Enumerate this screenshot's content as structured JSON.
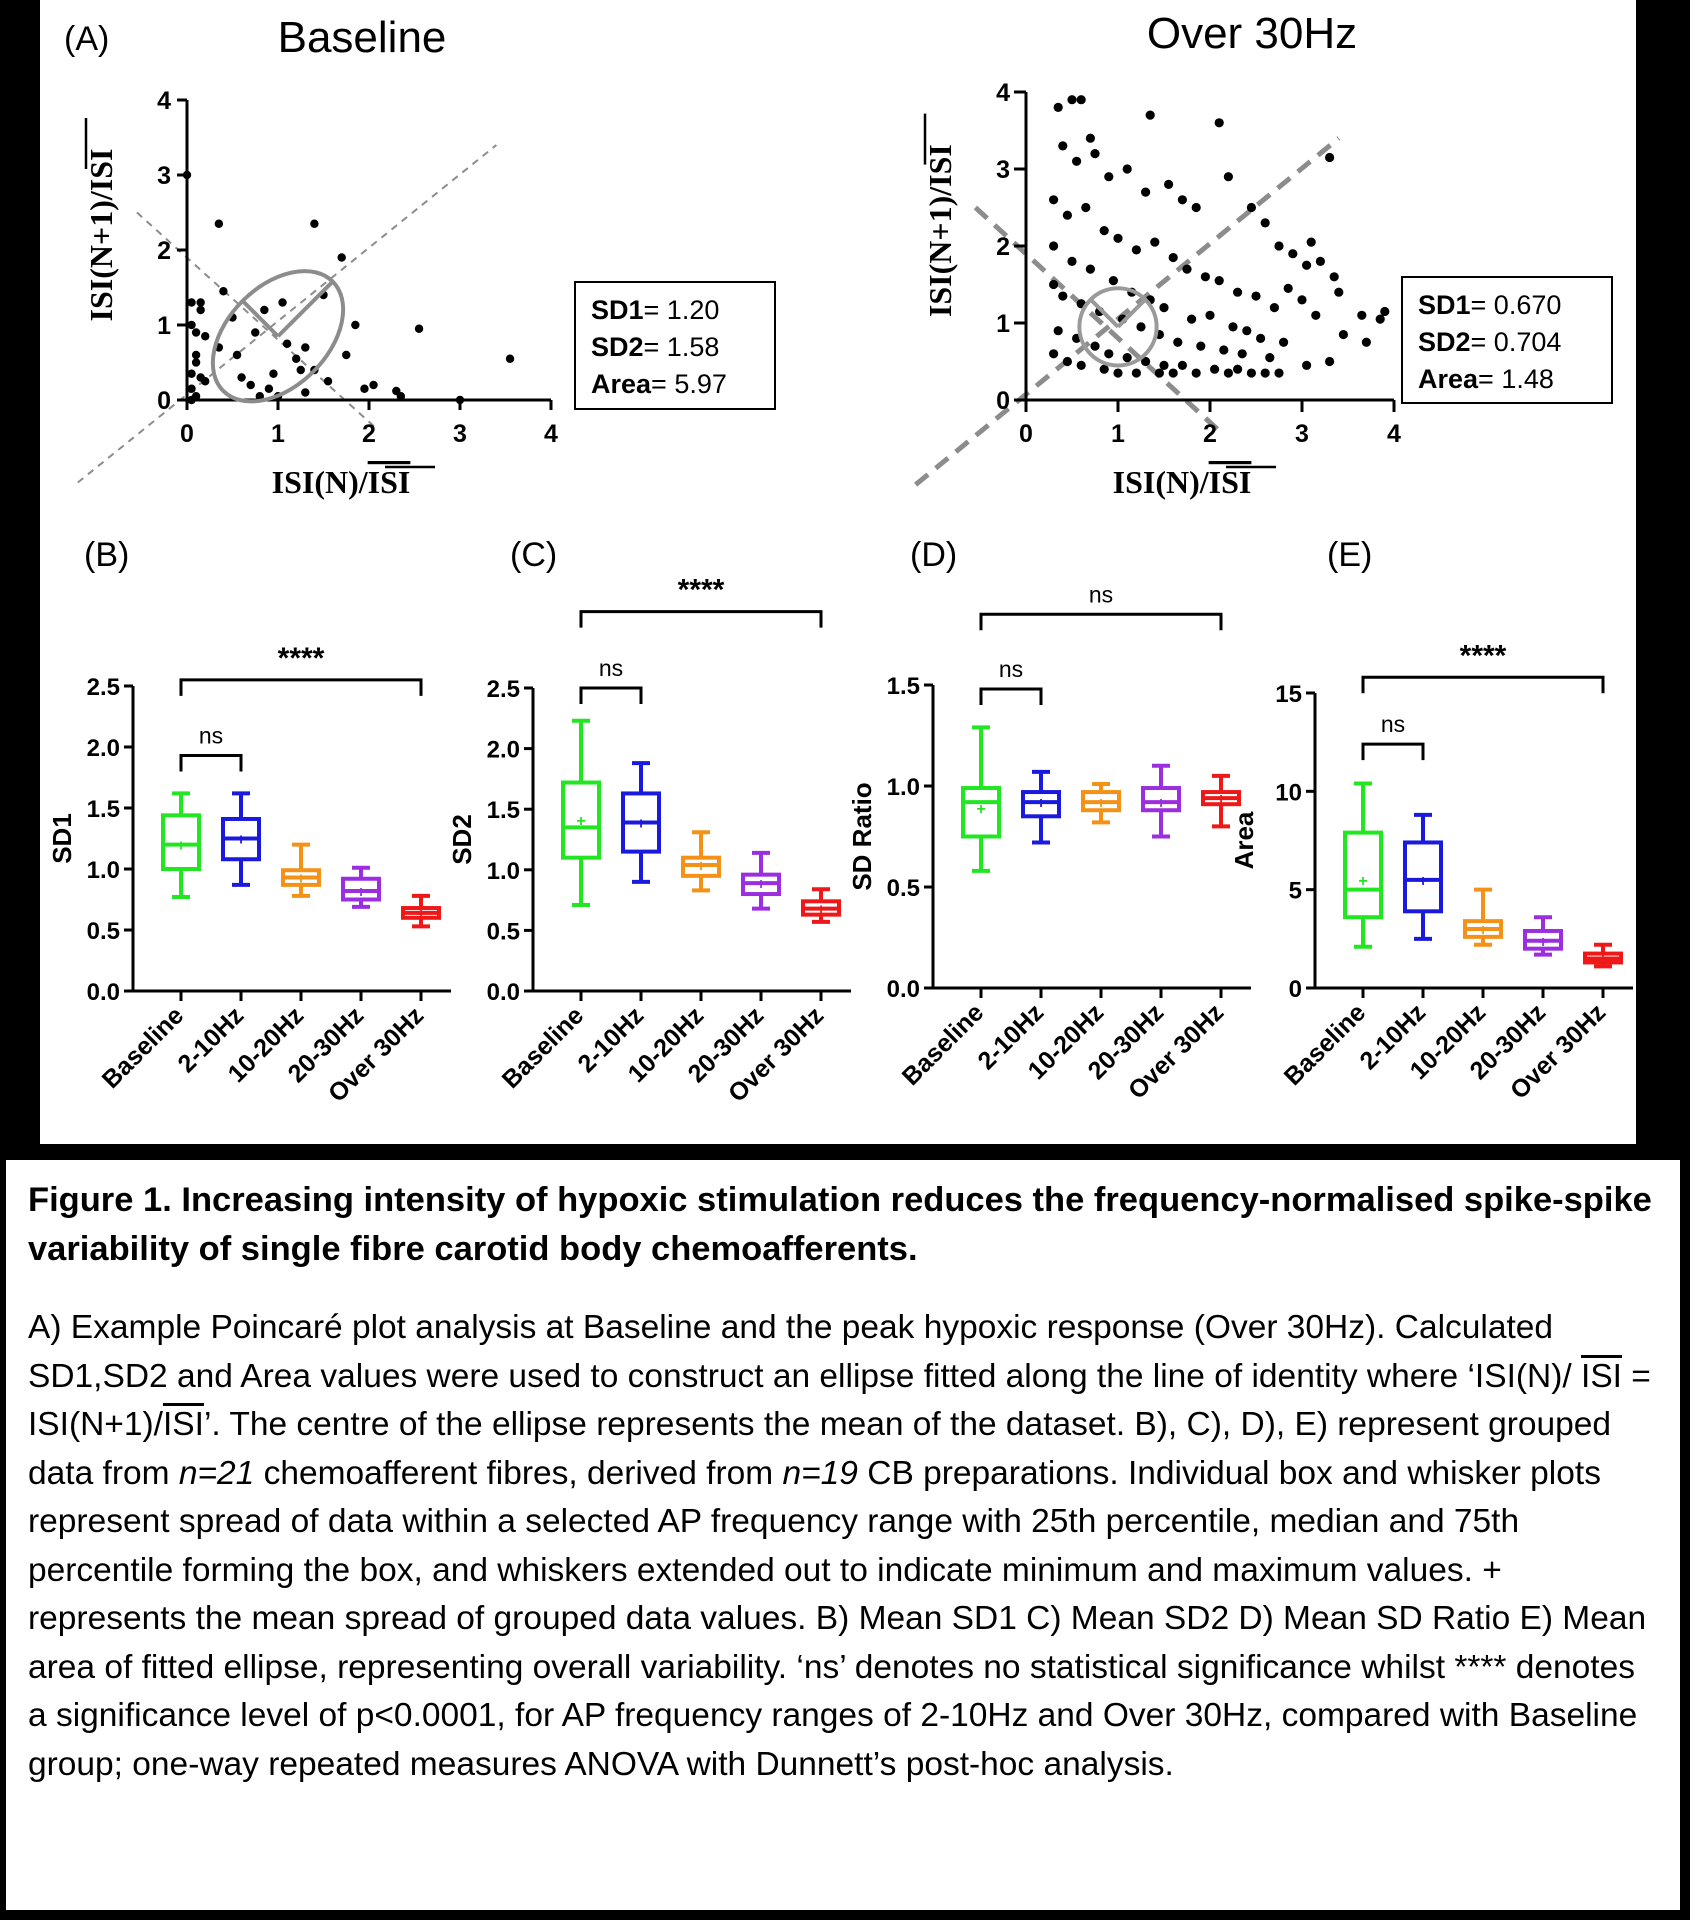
{
  "panel_a": {
    "label": "(A)",
    "isi_bar": "ISI",
    "axis_x_prefix": "ISI(N)/",
    "axis_y_prefix": "ISI(N+1)/",
    "plots": [
      {
        "title": "Baseline",
        "stats": [
          {
            "key": "SD1",
            "value": "= 1.20"
          },
          {
            "key": "SD2",
            "value": "= 1.58"
          },
          {
            "key": "Area",
            "value": "= 5.97"
          }
        ],
        "ellipse": {
          "cx": 1.0,
          "cy": 0.85,
          "sd1": 0.55,
          "sd2": 0.85
        }
      },
      {
        "title": "Over 30Hz",
        "stats": [
          {
            "key": "SD1",
            "value": "= 0.670"
          },
          {
            "key": "SD2",
            "value": "= 0.704"
          },
          {
            "key": "Area",
            "value": "= 1.48"
          }
        ],
        "ellipse": {
          "cx": 1.0,
          "cy": 0.95,
          "sd1": 0.42,
          "sd2": 0.42
        }
      }
    ]
  },
  "chart_data": [
    {
      "type": "scatter",
      "title": "Baseline",
      "xlabel": "ISI(N)/ISI",
      "ylabel": "ISI(N+1)/ISI",
      "xlim": [
        0,
        4
      ],
      "ylim": [
        0,
        4
      ],
      "x": [
        0.05,
        0.05,
        0.1,
        0.1,
        0.15,
        0.2,
        0.05,
        0.1,
        0.05,
        0.15,
        0.2,
        0.1,
        0.05,
        0.15,
        0.35,
        0.4,
        0.5,
        0.55,
        0.6,
        0.35,
        0.75,
        0.85,
        0.95,
        1.05,
        1.1,
        1.2,
        1.25,
        1.3,
        1.4,
        1.55,
        0.7,
        0.8,
        0.9,
        1.0,
        1.3,
        1.5,
        1.7,
        1.85,
        2.05,
        2.3,
        2.35,
        3.0,
        3.55,
        2.55,
        1.95,
        1.4,
        1.75,
        0.0
      ],
      "y": [
        1.3,
        1.0,
        0.9,
        0.6,
        0.3,
        0.25,
        0.15,
        0.05,
        0.0,
        1.2,
        0.85,
        0.5,
        0.35,
        1.3,
        2.35,
        1.45,
        1.1,
        0.6,
        0.3,
        0.7,
        0.9,
        1.2,
        0.35,
        1.3,
        0.75,
        0.55,
        0.4,
        0.7,
        0.4,
        0.25,
        0.2,
        0.05,
        0.15,
        0.05,
        0.1,
        1.4,
        1.9,
        1.0,
        0.2,
        0.12,
        0.05,
        0.0,
        0.55,
        0.95,
        0.15,
        2.35,
        0.6,
        3.0
      ]
    },
    {
      "type": "scatter",
      "title": "Over 30Hz",
      "xlabel": "ISI(N)/ISI",
      "ylabel": "ISI(N+1)/ISI",
      "xlim": [
        0,
        4
      ],
      "ylim": [
        0,
        4
      ],
      "x": [
        0.35,
        0.5,
        0.6,
        0.7,
        1.35,
        2.1,
        3.4,
        3.65,
        3.85,
        3.9,
        3.7,
        3.1,
        3.3,
        0.4,
        0.55,
        0.75,
        0.9,
        1.1,
        1.3,
        1.55,
        1.7,
        1.85,
        2.2,
        2.45,
        2.6,
        2.75,
        2.9,
        3.05,
        3.2,
        3.35,
        0.3,
        0.45,
        0.65,
        0.85,
        1.0,
        1.2,
        1.4,
        1.6,
        1.75,
        1.95,
        2.1,
        2.3,
        2.5,
        2.7,
        2.85,
        3.0,
        3.15,
        0.3,
        0.5,
        0.7,
        0.95,
        1.15,
        1.35,
        1.5,
        1.8,
        2.0,
        2.25,
        2.4,
        2.55,
        2.8,
        0.3,
        0.4,
        0.6,
        0.8,
        1.05,
        1.25,
        1.45,
        1.65,
        1.9,
        2.15,
        2.35,
        2.65,
        0.35,
        0.55,
        0.75,
        0.9,
        1.1,
        1.3,
        1.5,
        1.7,
        2.05,
        2.3,
        2.6,
        0.3,
        0.45,
        0.6,
        0.85,
        1.0,
        1.2,
        1.45,
        1.6,
        1.85,
        2.2,
        2.45,
        2.75,
        3.05,
        3.3,
        3.45
      ],
      "y": [
        3.8,
        3.9,
        3.9,
        3.4,
        3.7,
        3.6,
        1.4,
        1.1,
        1.05,
        1.15,
        0.75,
        2.05,
        3.15,
        3.3,
        3.1,
        3.2,
        2.9,
        3.0,
        2.7,
        2.8,
        2.6,
        2.5,
        2.9,
        2.5,
        2.3,
        2.0,
        1.9,
        1.75,
        1.8,
        1.6,
        2.6,
        2.4,
        2.5,
        2.2,
        2.1,
        1.95,
        2.05,
        1.85,
        1.7,
        1.6,
        1.55,
        1.4,
        1.35,
        1.2,
        1.45,
        1.3,
        1.1,
        2.0,
        1.8,
        1.7,
        1.55,
        1.4,
        1.3,
        1.2,
        1.05,
        1.1,
        0.95,
        0.9,
        0.8,
        0.75,
        1.5,
        1.35,
        1.25,
        1.15,
        1.05,
        0.95,
        0.85,
        0.75,
        0.7,
        0.65,
        0.6,
        0.55,
        0.9,
        0.8,
        0.7,
        0.6,
        0.55,
        0.5,
        0.45,
        0.45,
        0.4,
        0.4,
        0.35,
        0.6,
        0.5,
        0.45,
        0.4,
        0.35,
        0.35,
        0.35,
        0.35,
        0.35,
        0.35,
        0.35,
        0.35,
        0.45,
        0.5,
        0.85
      ]
    },
    {
      "type": "box",
      "panel": "(B)",
      "ylabel": "SD1",
      "ylim": [
        0,
        2.5
      ],
      "yticks": [
        "0.0",
        "0.5",
        "1.0",
        "1.5",
        "2.0",
        "2.5"
      ],
      "categories": [
        "Baseline",
        "2-10Hz",
        "10-20Hz",
        "20-30Hz",
        "Over 30Hz"
      ],
      "boxes": [
        {
          "min": 0.77,
          "q1": 1.0,
          "median": 1.2,
          "q3": 1.44,
          "max": 1.62,
          "mean": 1.2
        },
        {
          "min": 0.87,
          "q1": 1.08,
          "median": 1.25,
          "q3": 1.41,
          "max": 1.62,
          "mean": 1.25
        },
        {
          "min": 0.78,
          "q1": 0.87,
          "median": 0.93,
          "q3": 0.99,
          "max": 1.2,
          "mean": 0.93
        },
        {
          "min": 0.69,
          "q1": 0.75,
          "median": 0.82,
          "q3": 0.92,
          "max": 1.01,
          "mean": 0.82
        },
        {
          "min": 0.53,
          "q1": 0.6,
          "median": 0.64,
          "q3": 0.68,
          "max": 0.78,
          "mean": 0.64
        }
      ],
      "brackets": [
        {
          "from": 0,
          "to": 1,
          "label": "ns",
          "level": 1.93
        },
        {
          "from": 0,
          "to": 4,
          "label": "****",
          "level": 2.55
        }
      ]
    },
    {
      "type": "box",
      "panel": "(C)",
      "ylabel": "SD2",
      "ylim": [
        0,
        2.5
      ],
      "yticks": [
        "0.0",
        "0.5",
        "1.0",
        "1.5",
        "2.0",
        "2.5"
      ],
      "categories": [
        "Baseline",
        "2-10Hz",
        "10-20Hz",
        "20-30Hz",
        "Over 30Hz"
      ],
      "boxes": [
        {
          "min": 0.71,
          "q1": 1.1,
          "median": 1.35,
          "q3": 1.72,
          "max": 2.23,
          "mean": 1.41
        },
        {
          "min": 0.9,
          "q1": 1.15,
          "median": 1.39,
          "q3": 1.63,
          "max": 1.88,
          "mean": 1.39
        },
        {
          "min": 0.83,
          "q1": 0.95,
          "median": 1.04,
          "q3": 1.1,
          "max": 1.31,
          "mean": 1.04
        },
        {
          "min": 0.68,
          "q1": 0.8,
          "median": 0.89,
          "q3": 0.96,
          "max": 1.14,
          "mean": 0.89
        },
        {
          "min": 0.57,
          "q1": 0.63,
          "median": 0.68,
          "q3": 0.74,
          "max": 0.84,
          "mean": 0.68
        }
      ],
      "brackets": [
        {
          "from": 0,
          "to": 1,
          "label": "ns",
          "level": 2.5
        },
        {
          "from": 0,
          "to": 4,
          "label": "****",
          "level": 3.13
        }
      ]
    },
    {
      "type": "box",
      "panel": "(D)",
      "ylabel": "SD Ratio",
      "ylim": [
        0,
        1.5
      ],
      "yticks": [
        "0.0",
        "0.5",
        "1.0",
        "1.5"
      ],
      "categories": [
        "Baseline",
        "2-10Hz",
        "10-20Hz",
        "20-30Hz",
        "Over 30Hz"
      ],
      "boxes": [
        {
          "min": 0.58,
          "q1": 0.75,
          "median": 0.92,
          "q3": 0.99,
          "max": 1.29,
          "mean": 0.89
        },
        {
          "min": 0.72,
          "q1": 0.85,
          "median": 0.92,
          "q3": 0.97,
          "max": 1.07,
          "mean": 0.92
        },
        {
          "min": 0.82,
          "q1": 0.88,
          "median": 0.92,
          "q3": 0.97,
          "max": 1.01,
          "mean": 0.92
        },
        {
          "min": 0.75,
          "q1": 0.88,
          "median": 0.92,
          "q3": 0.99,
          "max": 1.1,
          "mean": 0.92
        },
        {
          "min": 0.8,
          "q1": 0.91,
          "median": 0.94,
          "q3": 0.97,
          "max": 1.05,
          "mean": 0.94
        }
      ],
      "brackets": [
        {
          "from": 0,
          "to": 1,
          "label": "ns",
          "level": 1.48
        },
        {
          "from": 0,
          "to": 4,
          "label": "ns",
          "level": 1.85
        }
      ]
    },
    {
      "type": "box",
      "panel": "(E)",
      "ylabel": "Area",
      "ylim": [
        0,
        15
      ],
      "yticks": [
        "0",
        "5",
        "10",
        "15"
      ],
      "categories": [
        "Baseline",
        "2-10Hz",
        "10-20Hz",
        "20-30Hz",
        "Over 30Hz"
      ],
      "boxes": [
        {
          "min": 2.1,
          "q1": 3.6,
          "median": 5.0,
          "q3": 7.9,
          "max": 10.4,
          "mean": 5.5
        },
        {
          "min": 2.5,
          "q1": 3.9,
          "median": 5.5,
          "q3": 7.4,
          "max": 8.8,
          "mean": 5.5
        },
        {
          "min": 2.2,
          "q1": 2.6,
          "median": 3.0,
          "q3": 3.4,
          "max": 5.0,
          "mean": 3.0
        },
        {
          "min": 1.7,
          "q1": 2.0,
          "median": 2.4,
          "q3": 2.9,
          "max": 3.6,
          "mean": 2.4
        },
        {
          "min": 1.1,
          "q1": 1.3,
          "median": 1.5,
          "q3": 1.75,
          "max": 2.2,
          "mean": 1.5
        }
      ],
      "brackets": [
        {
          "from": 0,
          "to": 1,
          "label": "ns",
          "level": 12.4
        },
        {
          "from": 0,
          "to": 4,
          "label": "****",
          "level": 15.8
        }
      ]
    }
  ],
  "box_colors": [
    "#22e622",
    "#1a1adf",
    "#f39217",
    "#9b2fe0",
    "#ef1818"
  ],
  "caption": {
    "title": "Figure 1. Increasing intensity of hypoxic stimulation reduces the frequency-normalised spike-spike variability of single fibre carotid body chemoafferents.",
    "segments": [
      {
        "t": "A) Example Poincaré plot analysis at Baseline and the peak hypoxic response (Over 30Hz). Calculated SD1,SD2 and Area values were used to construct an ellipse fitted along the line of identity where ‘ISI(N)/ "
      },
      {
        "t": "ISI",
        "style": "ov"
      },
      {
        "t": " = ISI(N+1)/"
      },
      {
        "t": "ISI",
        "style": "ov"
      },
      {
        "t": "’. The centre of the ellipse represents the mean of the dataset. B), C), D), E) represent grouped data from "
      },
      {
        "t": "n=21",
        "style": "i"
      },
      {
        "t": " chemoafferent fibres, derived from "
      },
      {
        "t": "n=19",
        "style": "i"
      },
      {
        "t": " CB preparations. Individual box and whisker plots represent spread of data within a selected AP frequency range with 25th percentile, median and 75th percentile forming the box, and whiskers extended out to indicate minimum and maximum values. + represents the mean spread of grouped data values. B) Mean SD1 C) Mean SD2 D) Mean SD Ratio E) Mean area of fitted ellipse, representing overall variability. ‘ns’ denotes no statistical significance whilst **** denotes a significance level of p<0.0001, for AP frequency ranges of 2-10Hz and Over 30Hz, compared with Baseline group; one-way repeated measures ANOVA with Dunnett’s post-hoc analysis."
      }
    ]
  }
}
